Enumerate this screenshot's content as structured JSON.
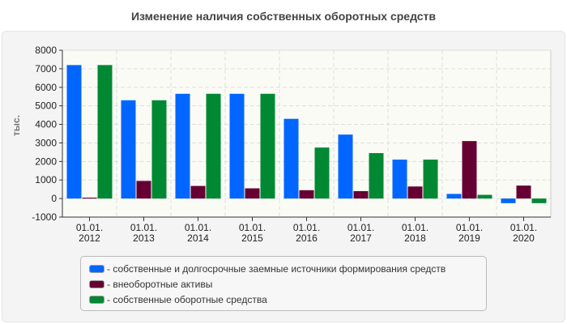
{
  "chart_data": {
    "type": "bar",
    "title": "Изменение наличия собственных оборотных средств",
    "ylabel": "тыс.",
    "xlabel": "",
    "ylim": [
      -1000,
      8000
    ],
    "yticks": [
      -1000,
      0,
      1000,
      2000,
      3000,
      4000,
      5000,
      6000,
      7000,
      8000
    ],
    "grid": true,
    "legend_position": "bottom",
    "categories": [
      [
        "01.01.",
        "2012"
      ],
      [
        "01.01.",
        "2013"
      ],
      [
        "01.01.",
        "2014"
      ],
      [
        "01.01.",
        "2015"
      ],
      [
        "01.01.",
        "2016"
      ],
      [
        "01.01.",
        "2017"
      ],
      [
        "01.01.",
        "2018"
      ],
      [
        "01.01.",
        "2019"
      ],
      [
        "01.01.",
        "2020"
      ]
    ],
    "series": [
      {
        "name": "собственные и долгосрочные заемные источники формирования средств",
        "color": "#0066ff",
        "values": [
          7200,
          5300,
          5650,
          5650,
          4300,
          3450,
          2100,
          250,
          -250
        ]
      },
      {
        "name": "внеоборотные активы",
        "color": "#660033",
        "values": [
          50,
          950,
          680,
          550,
          450,
          400,
          650,
          3100,
          700
        ]
      },
      {
        "name": "собственные оборотные средства",
        "color": "#008833",
        "values": [
          7200,
          5300,
          5650,
          5650,
          2750,
          2450,
          2100,
          200,
          -250
        ]
      }
    ]
  }
}
